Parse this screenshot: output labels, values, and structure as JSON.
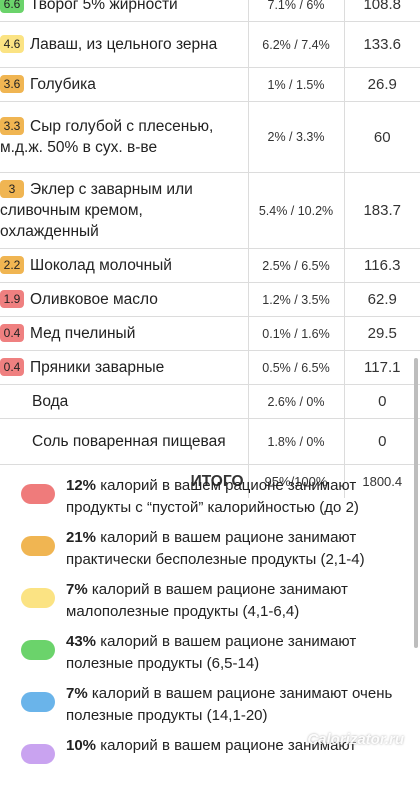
{
  "table": {
    "rows": [
      {
        "score": "6.6",
        "score_color": "#6bd36b",
        "name": "Творог 5% жирности",
        "pct": "7.1% / 6%",
        "kcal": "108.8"
      },
      {
        "score": "4.6",
        "score_color": "#fbe383",
        "name": "Лаваш, из цельного зерна",
        "pct": "6.2% / 7.4%",
        "kcal": "133.6"
      },
      {
        "score": "3.6",
        "score_color": "#f0b552",
        "name": "Голубика",
        "pct": "1% / 1.5%",
        "kcal": "26.9"
      },
      {
        "score": "3.3",
        "score_color": "#f0b552",
        "name": "Сыр голубой с плесенью, м.д.ж. 50% в сух. в-ве",
        "pct": "2% / 3.3%",
        "kcal": "60"
      },
      {
        "score": "3",
        "score_color": "#f0b552",
        "name": "Эклер с заварным или сливочным кремом, охлажденный",
        "pct": "5.4% / 10.2%",
        "kcal": "183.7"
      },
      {
        "score": "2.2",
        "score_color": "#f0b552",
        "name": "Шоколад молочный",
        "pct": "2.5% / 6.5%",
        "kcal": "116.3"
      },
      {
        "score": "1.9",
        "score_color": "#ef8080",
        "name": "Оливковое масло",
        "pct": "1.2% / 3.5%",
        "kcal": "62.9"
      },
      {
        "score": "0.4",
        "score_color": "#ef8080",
        "name": "Мед пчелиный",
        "pct": "0.1% / 1.6%",
        "kcal": "29.5"
      },
      {
        "score": "0.4",
        "score_color": "#ef8080",
        "name": "Пряники заварные",
        "pct": "0.5% / 6.5%",
        "kcal": "117.1"
      },
      {
        "score": "",
        "score_color": "",
        "name": "Вода",
        "pct": "2.6% / 0%",
        "kcal": "0"
      },
      {
        "score": "",
        "score_color": "",
        "name": "Соль поваренная пищевая",
        "pct": "1.8% / 0%",
        "kcal": "0"
      }
    ],
    "total": {
      "label": "ИТОГО",
      "pct": "95%/100%",
      "kcal": "1800.4"
    }
  },
  "legend": [
    {
      "color": "#ef7b7b",
      "percent": "12%",
      "text": " калорий в вашем рационе занимают продукты с “пустой” калорийностью (до 2)"
    },
    {
      "color": "#f0b552",
      "percent": "21%",
      "text": " калорий в вашем рационе занимают практически бесполезные продукты (2,1-4)"
    },
    {
      "color": "#fbe383",
      "percent": "7%",
      "text": " калорий в вашем рационе занимают малополезные продукты (4,1-6,4)"
    },
    {
      "color": "#6bd36b",
      "percent": "43%",
      "text": " калорий в вашем рационе занимают полезные продукты (6,5-14)"
    },
    {
      "color": "#6ab4ea",
      "percent": "7%",
      "text": " калорий в вашем рационе занимают очень полезные продукты (14,1-20)"
    },
    {
      "color": "#c9a3f0",
      "percent": "10%",
      "text": " калорий в вашем рационе занимают"
    }
  ],
  "watermark": "Calorizator.ru"
}
